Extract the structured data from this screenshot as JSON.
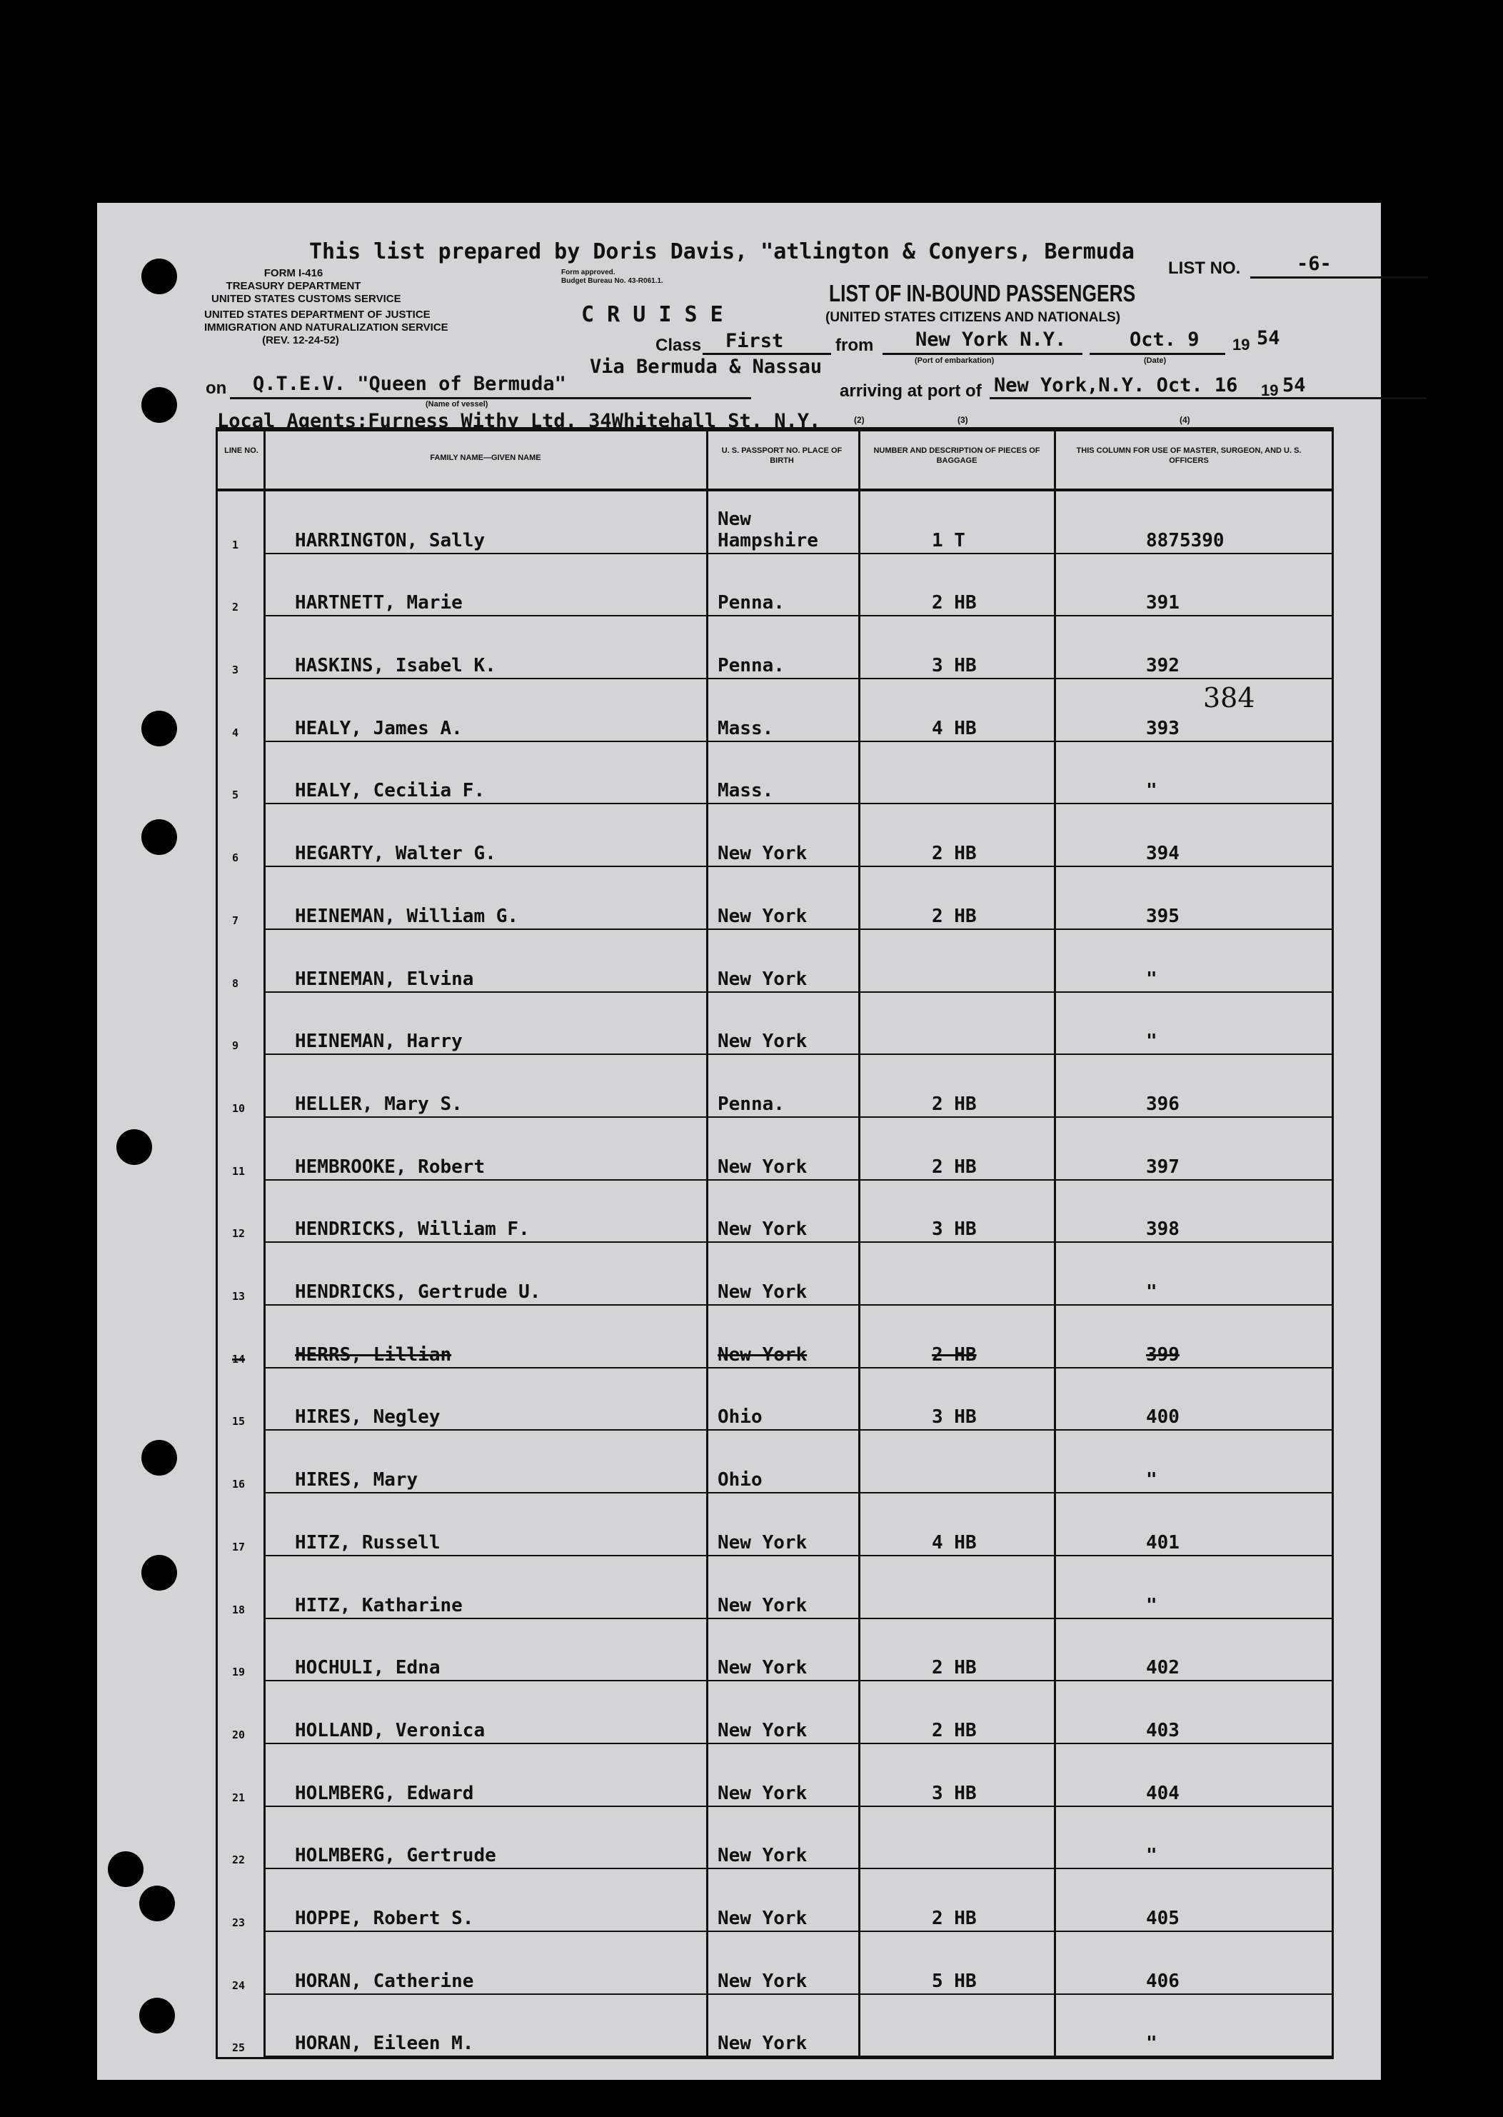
{
  "header": {
    "prepared_by": "This list prepared by Doris Davis, \"atlington & Conyers, Bermuda",
    "form_no": "Form I-416",
    "dept1": "Treasury Department",
    "dept1_sub": "United States Customs Service",
    "dept2": "United States Department of Justice",
    "dept2_sub": "Immigration and Naturalization Service",
    "rev": "(Rev. 12-24-52)",
    "form_approved": "Form approved.",
    "budget": "Budget Bureau No. 43-R061.1.",
    "cruise": "C R U I S E",
    "list_no_label": "List No.",
    "list_no": "-6-",
    "title": "LIST OF IN-BOUND PASSENGERS",
    "subtitle": "(United States Citizens and Nationals)",
    "class_label": "Class",
    "class": "First",
    "from_label": "from",
    "from_port": "New York N.Y.",
    "port_label": "(Port of embarkation)",
    "from_date": "Oct. 9",
    "date_label": "(Date)",
    "year_prefix": "19",
    "from_year": "54",
    "via": "Via Bermuda & Nassau",
    "on_label": "on",
    "vessel": "Q.T.E.V. \"Queen of Bermuda\"",
    "vessel_label": "(Name of vessel)",
    "arriving_label": "arriving at port of",
    "arrival": "New York,N.Y. Oct. 16",
    "arrival_year": "54",
    "agents": "Local Agents;Furness Withy Ltd. 34Whitehall St. N.Y.",
    "col_marks": [
      "(2)",
      "(3)",
      "(4)"
    ]
  },
  "table": {
    "headers": [
      "Line No.",
      "Family Name—Given Name",
      "U. S. Passport No. Place of Birth",
      "Number and Description of Pieces of Baggage",
      "This Column for Use of Master, Surgeon, and U. S. Officers"
    ],
    "rows": [
      {
        "line": "1",
        "name": "HARRINGTON, Sally",
        "birth": "New Hampshire",
        "baggage": "1 T",
        "officer": "8875390"
      },
      {
        "line": "2",
        "name": "HARTNETT, Marie",
        "birth": "Penna.",
        "baggage": "2 HB",
        "officer": "391"
      },
      {
        "line": "3",
        "name": "HASKINS, Isabel K.",
        "birth": "Penna.",
        "baggage": "3 HB",
        "officer": "392"
      },
      {
        "line": "4",
        "name": "HEALY, James A.",
        "birth": "Mass.",
        "baggage": "4 HB",
        "officer": "393"
      },
      {
        "line": "5",
        "name": "HEALY, Cecilia F.",
        "birth": "Mass.",
        "baggage": "",
        "officer": "\""
      },
      {
        "line": "6",
        "name": "HEGARTY, Walter G.",
        "birth": "New York",
        "baggage": "2 HB",
        "officer": "394"
      },
      {
        "line": "7",
        "name": "HEINEMAN, William G.",
        "birth": "New York",
        "baggage": "2 HB",
        "officer": "395"
      },
      {
        "line": "8",
        "name": "HEINEMAN, Elvina",
        "birth": "New York",
        "baggage": "",
        "officer": "\""
      },
      {
        "line": "9",
        "name": "HEINEMAN, Harry",
        "birth": "New York",
        "baggage": "",
        "officer": "\""
      },
      {
        "line": "10",
        "name": "HELLER, Mary S.",
        "birth": "Penna.",
        "baggage": "2 HB",
        "officer": "396"
      },
      {
        "line": "11",
        "name": "HEMBROOKE, Robert",
        "birth": "New York",
        "baggage": "2 HB",
        "officer": "397"
      },
      {
        "line": "12",
        "name": "HENDRICKS, William F.",
        "birth": "New York",
        "baggage": "3 HB",
        "officer": "398"
      },
      {
        "line": "13",
        "name": "HENDRICKS, Gertrude U.",
        "birth": "New York",
        "baggage": "",
        "officer": "\""
      },
      {
        "line": "14",
        "name": "HERRS, Lillian",
        "birth": "New York",
        "baggage": "2 HB",
        "officer": "399",
        "struck": true
      },
      {
        "line": "15",
        "name": "HIRES, Negley",
        "birth": "Ohio",
        "baggage": "3 HB",
        "officer": "400"
      },
      {
        "line": "16",
        "name": "HIRES, Mary",
        "birth": "Ohio",
        "baggage": "",
        "officer": "\""
      },
      {
        "line": "17",
        "name": "HITZ, Russell",
        "birth": "New York",
        "baggage": "4 HB",
        "officer": "401"
      },
      {
        "line": "18",
        "name": "HITZ, Katharine",
        "birth": "New York",
        "baggage": "",
        "officer": "\""
      },
      {
        "line": "19",
        "name": "HOCHULI, Edna",
        "birth": "New York",
        "baggage": "2 HB",
        "officer": "402"
      },
      {
        "line": "20",
        "name": "HOLLAND, Veronica",
        "birth": "New York",
        "baggage": "2 HB",
        "officer": "403"
      },
      {
        "line": "21",
        "name": "HOLMBERG, Edward",
        "birth": "New York",
        "baggage": "3 HB",
        "officer": "404"
      },
      {
        "line": "22",
        "name": "HOLMBERG, Gertrude",
        "birth": "New York",
        "baggage": "",
        "officer": "\""
      },
      {
        "line": "23",
        "name": "HOPPE, Robert S.",
        "birth": "New York",
        "baggage": "2 HB",
        "officer": "405"
      },
      {
        "line": "24",
        "name": "HORAN, Catherine",
        "birth": "New York",
        "baggage": "5 HB",
        "officer": "406"
      },
      {
        "line": "25",
        "name": "HORAN, Eileen M.",
        "birth": "New York",
        "baggage": "",
        "officer": "\""
      }
    ],
    "annotation": "384"
  }
}
